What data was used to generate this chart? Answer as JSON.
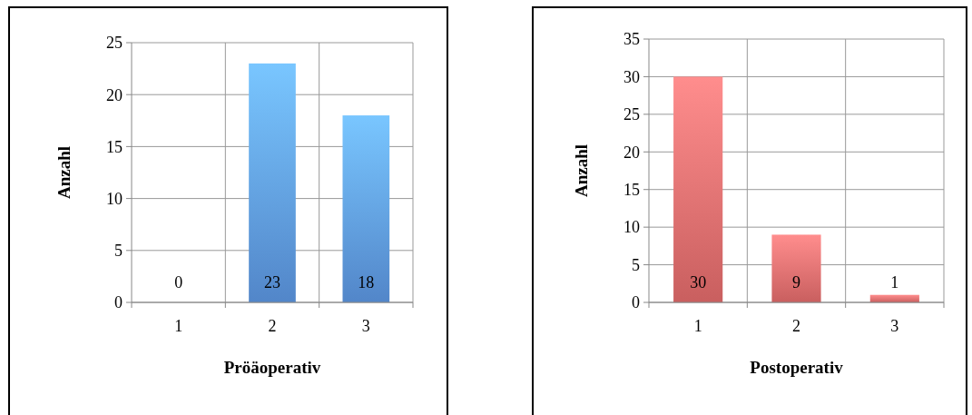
{
  "chart_data": [
    {
      "type": "bar",
      "xlabel": "Pröäoperativ",
      "ylabel": "Anzahl",
      "categories": [
        "1",
        "2",
        "3"
      ],
      "values": [
        0,
        23,
        18
      ],
      "color": "#5b95e0",
      "ylim": [
        0,
        25
      ],
      "yticks": [
        0,
        5,
        10,
        15,
        20,
        25
      ],
      "grid": true,
      "data_labels": true
    },
    {
      "type": "bar",
      "xlabel": "Postoperativ",
      "ylabel": "Anzahl",
      "categories": [
        "1",
        "2",
        "3"
      ],
      "values": [
        30,
        9,
        1
      ],
      "color": "#e06a6a",
      "ylim": [
        0,
        35
      ],
      "yticks": [
        0,
        5,
        10,
        15,
        20,
        25,
        30,
        35
      ],
      "grid": true,
      "data_labels": true
    }
  ]
}
